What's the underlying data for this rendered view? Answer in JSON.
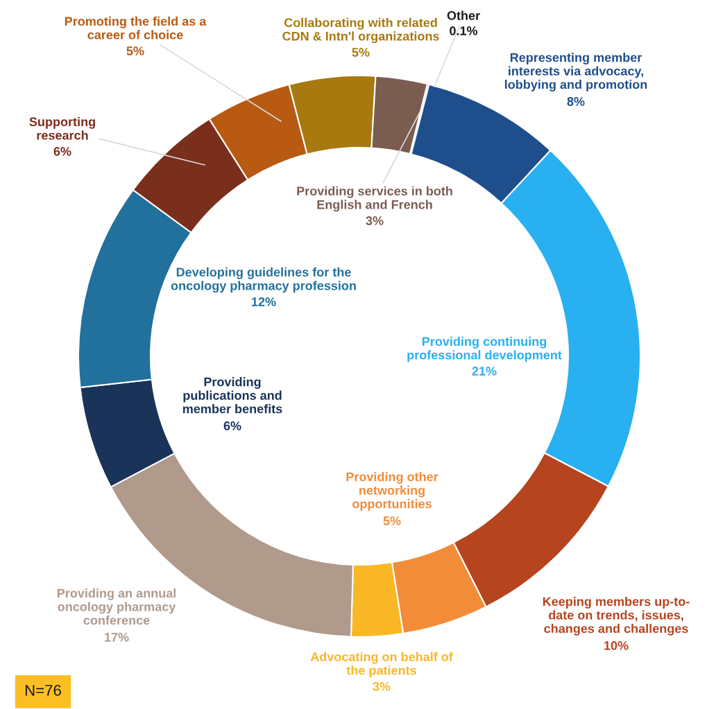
{
  "chart_data": {
    "type": "donut",
    "categories": [
      "Other",
      "Representing member\ninterests via advocacy,\nlobbying and promotion",
      "Providing continuing\nprofessional development",
      "Keeping members up-to-\ndate on trends, issues,\nchanges and challenges",
      "Providing other\nnetworking\nopportunities",
      "Advocating on behalf of\nthe patients",
      "Providing an annual\noncology pharmacy\nconference",
      "Providing\npublications and\nmember benefits",
      "Developing guidelines for the\noncology pharmacy profession",
      "Supporting\nresearch",
      "Promoting the field as a\ncareer of choice",
      "Collaborating with related\nCDN & Intn'l organizations",
      "Providing services in both\nEnglish and French"
    ],
    "values": [
      0.1,
      8,
      21,
      10,
      5,
      3,
      17,
      6,
      12,
      6,
      5,
      5,
      3
    ],
    "colors": [
      "#1a1a1a",
      "#1f4e8c",
      "#29b0f0",
      "#b5441f",
      "#f28c38",
      "#f9b726",
      "#b09a8c",
      "#1a3358",
      "#22709c",
      "#7a2e1c",
      "#b85a12",
      "#a8790e",
      "#7a5c50"
    ],
    "value_labels": [
      "0.1%",
      "8%",
      "21%",
      "10%",
      "5%",
      "3%",
      "17%",
      "6%",
      "12%",
      "6%",
      "5%",
      "5%",
      "3%"
    ],
    "annotations": [
      "N=76"
    ]
  }
}
